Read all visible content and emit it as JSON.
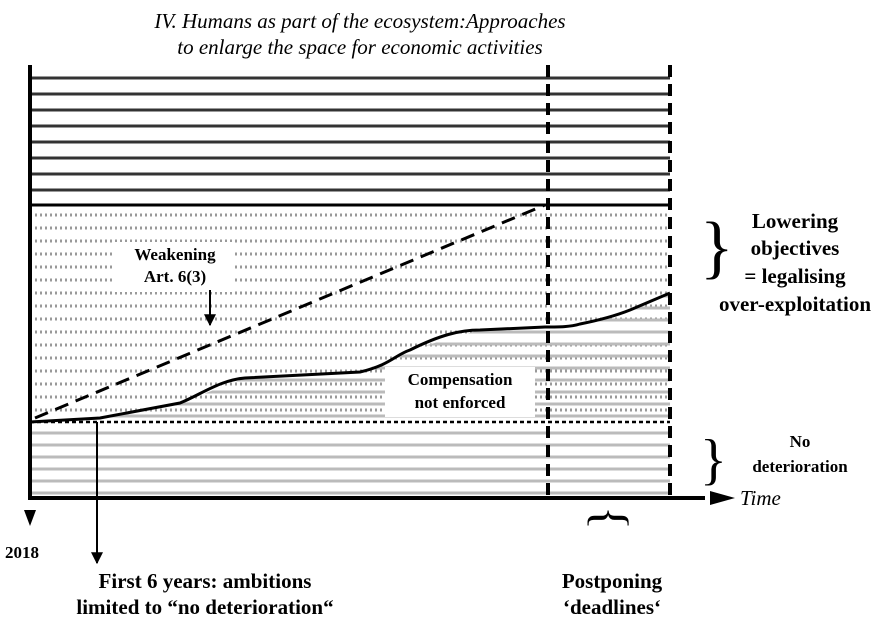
{
  "title": [
    "IV. Humans as part of the ecosystem:Approaches",
    "to enlarge the space for economic activities"
  ],
  "weakening": [
    "Weakening",
    "Art. 6(3)"
  ],
  "lowering": [
    "Lowering",
    "objectives",
    "= legalising",
    "over-exploitation"
  ],
  "compensation": [
    "Compensation",
    "not enforced"
  ],
  "no_deterioration": [
    "No",
    "deterioration"
  ],
  "time_axis": "Time",
  "start_year": "2018",
  "first_years": [
    "First 6 years: ambitions",
    "limited to “no deterioration“"
  ],
  "postponing": [
    "Postponing",
    "‘deadlines‘"
  ]
}
